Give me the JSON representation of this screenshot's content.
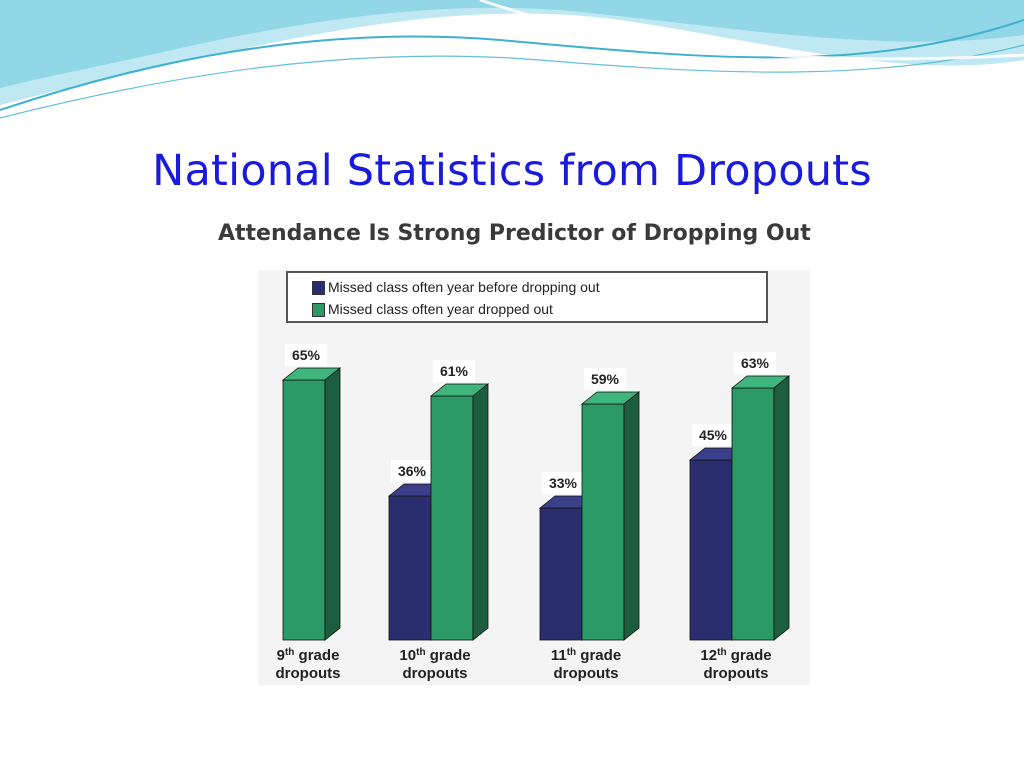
{
  "slide": {
    "title": "National Statistics from Dropouts"
  },
  "colors": {
    "title": "#1a1adc",
    "series_before": "#2a2d6e",
    "series_dropped": "#2b9a66"
  },
  "chart_data": {
    "type": "bar",
    "title": "Attendance Is Strong Predictor of Dropping Out",
    "categories": [
      {
        "ordinal": "9",
        "suffix": "th",
        "line1_rest": " grade",
        "line2": "dropouts"
      },
      {
        "ordinal": "10",
        "suffix": "th",
        "line1_rest": " grade",
        "line2": "dropouts"
      },
      {
        "ordinal": "11",
        "suffix": "th",
        "line1_rest": " grade",
        "line2": "dropouts"
      },
      {
        "ordinal": "12",
        "suffix": "th",
        "line1_rest": " grade",
        "line2": "dropouts"
      }
    ],
    "series": [
      {
        "name": "Missed class often year before dropping out",
        "color": "#2a2d6e",
        "values": [
          null,
          36,
          33,
          45
        ],
        "labels": [
          "",
          "36%",
          "33%",
          "45%"
        ]
      },
      {
        "name": "Missed class often year dropped out",
        "color": "#2b9a66",
        "values": [
          65,
          61,
          59,
          63
        ],
        "labels": [
          "65%",
          "61%",
          "59%",
          "63%"
        ]
      }
    ],
    "ylim": [
      0,
      70
    ],
    "grid": false,
    "legend_position": "top"
  }
}
